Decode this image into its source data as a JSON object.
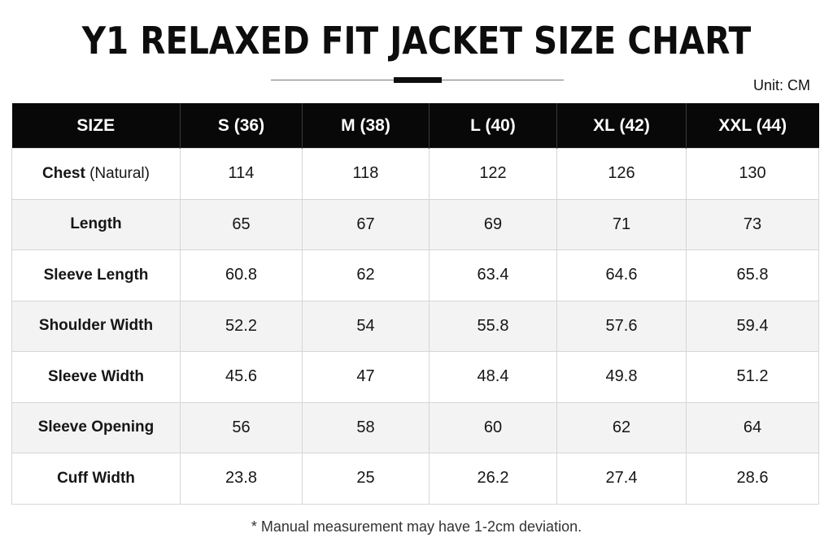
{
  "title": "Y1 RELAXED FIT JACKET SIZE CHART",
  "unit": "Unit: CM",
  "table": {
    "headers": [
      "SIZE",
      "S (36)",
      "M (38)",
      "L (40)",
      "XL (42)",
      "XXL (44)"
    ],
    "rows": [
      {
        "label": "Chest",
        "label_note": " (Natural)",
        "values": [
          "114",
          "118",
          "122",
          "126",
          "130"
        ]
      },
      {
        "label": "Length",
        "label_note": "",
        "values": [
          "65",
          "67",
          "69",
          "71",
          "73"
        ]
      },
      {
        "label": "Sleeve Length",
        "label_note": "",
        "values": [
          "60.8",
          "62",
          "63.4",
          "64.6",
          "65.8"
        ]
      },
      {
        "label": "Shoulder Width",
        "label_note": "",
        "values": [
          "52.2",
          "54",
          "55.8",
          "57.6",
          "59.4"
        ]
      },
      {
        "label": "Sleeve Width",
        "label_note": "",
        "values": [
          "45.6",
          "47",
          "48.4",
          "49.8",
          "51.2"
        ]
      },
      {
        "label": "Sleeve Opening",
        "label_note": "",
        "values": [
          "56",
          "58",
          "60",
          "62",
          "64"
        ]
      },
      {
        "label": "Cuff Width",
        "label_note": "",
        "values": [
          "23.8",
          "25",
          "26.2",
          "27.4",
          "28.6"
        ]
      }
    ]
  },
  "footnote": "* Manual measurement may have 1-2cm deviation.",
  "colors": {
    "header_bg": "#080808",
    "header_text": "#ffffff",
    "alt_row_bg": "#f3f3f3",
    "border": "#d6d6d6"
  }
}
